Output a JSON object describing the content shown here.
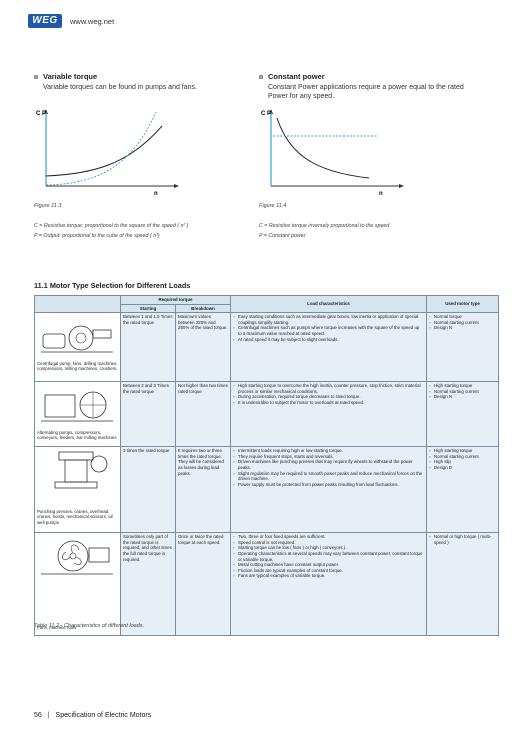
{
  "header": {
    "logo_text": "WEG",
    "site": "www.weg.net"
  },
  "sections": {
    "variable": {
      "title": "Variable torque",
      "text": "Variable torques can be found in pumps and fans."
    },
    "constant": {
      "title": "Constant power",
      "text": "Constant Power applications require a power equal to the rated Power for any speed."
    }
  },
  "figures": {
    "left": {
      "caption": "Figure 11.3",
      "c_label": "C",
      "p_label": "P",
      "n_label": "n"
    },
    "right": {
      "caption": "Figure 11.4",
      "c_label": "C",
      "p_label": "P",
      "n_label": "n"
    }
  },
  "legend": {
    "left_c": "C   =   Resistive torque: proportional to the square of the speed ( n² )",
    "left_p": "P   =   Output: proportional to the cube of the speed ( n³)",
    "right_c": "C   =   Resistive torque inversely proportional  to the speed",
    "right_p": "P   =   Constant power"
  },
  "section_heading": "11.1 Motor Type Selection for Different Loads",
  "table": {
    "headers": {
      "required_torque": "Required torque",
      "starting": "Starting",
      "breakdown": "Breakdown",
      "load_characteristics": "Load characteristics",
      "motor_type": "Used motor type"
    },
    "rows": [
      {
        "application": "Centrifugal pump, fans, drilling machines, compressors, milling machines, crushers.",
        "starting": "Between 1 and 1.5 Times the rated torque",
        "breakdown": "Maximum values between 220% and 250% of the rated torque.",
        "characteristics": [
          "Easy starting conditions such as intermediate gear boxes, low inertia or application of special couplings simplify starting.",
          "Centrifugal machines such as pumps where torque increases with the square of the speed up to a maximum value reached at rated speed.",
          "At rated speed it may be subject to slight overloads."
        ],
        "motor_type": [
          "Normal torque",
          "Normal starting current",
          "Design N"
        ]
      },
      {
        "application": "Alternating pumps, compressors, conveyors, feeders, bar milling machines",
        "starting": "Between 2 and 3 Times the rated torque",
        "breakdown": "Not higher than two times rated torque",
        "characteristics": [
          "High starting torque to overcome the high inertia, counter pressure, stop friction, strict material process or similar mechanical conditions.",
          "During acceleration, required torque decreases to rated torque.",
          "It is undesirable to subject the motor to overloads at rated speed."
        ],
        "motor_type": [
          "High starting torque",
          "Normal starting current",
          "Design N"
        ]
      },
      {
        "application": "Punching presses, cranes, overhead cranes, hoists, mechanical scissors, oil well pumps",
        "starting": "3 times the rated torque",
        "breakdown": "It requires two or three times the rated torque. They will be considered as losses during load peaks.",
        "characteristics": [
          "Intermittent loads requiring high or low starting torque.",
          "They require frequent stops, starts and reversals.",
          "Driven machines like punching presses that may require fly wheels to withstand the power peaks.",
          "Slight regulation may be required to smooth power peaks and reduce mechanical forces on the driven machine.",
          "Power supply must be protected from power peaks resulting from load fluctuations."
        ],
        "motor_type": [
          "High starting torque",
          "Normal starting current",
          "High slip",
          "Design D"
        ]
      },
      {
        "application": "Fans, machine tools",
        "starting": "Sometimes only part of the rated torque is required; and other times the full rated torque is required.",
        "breakdown": "Once or twice the rated torque at each speed.",
        "characteristics": [
          "Two, three or four fixed speeds are sufficient.",
          "Speed control is not required.",
          "Starting torque can be low ( fans ) or high ( conveyors ).",
          "Operating characteristics at several speeds may vary between constant power, constant torque or variable torque.",
          "Metal cutting machines have constant output power.",
          "Friction loads are typical examples of constant torque.",
          "Fans are typical examples of variable torque."
        ],
        "motor_type": [
          "Normal or high torque ( multi-speed )"
        ]
      }
    ]
  },
  "table_caption": "Table 11.2 - Characteristics of different loads.",
  "footer": {
    "page": "56",
    "title": "Specification of Electric Motors"
  },
  "colors": {
    "brand": "#1f5aa6",
    "header_fill": "#d5e4ee",
    "cell_fill": "#e6eff5",
    "curve_blue": "#3aa0d8"
  }
}
